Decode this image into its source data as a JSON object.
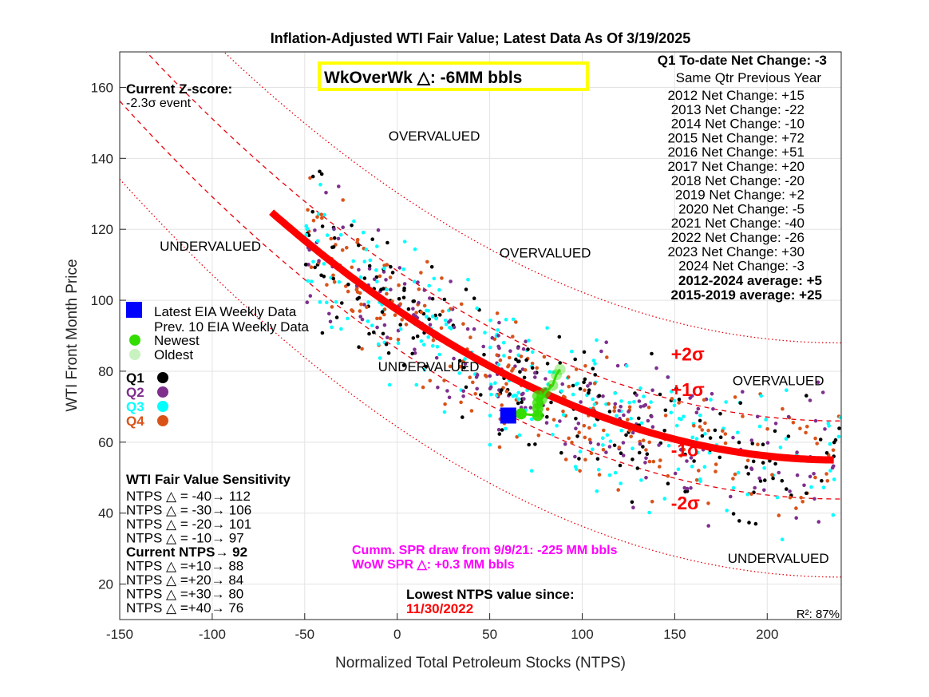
{
  "chart_data": {
    "type": "scatter",
    "title": "Inflation-Adjusted WTI Fair Value; Latest Data As Of 3/19/2025",
    "xlabel": "Normalized Total Petroleum Stocks (NTPS)",
    "ylabel": "WTI Front Month Price",
    "xlim": [
      -150,
      240
    ],
    "ylim": [
      10,
      170
    ],
    "xticks": [
      -150,
      -100,
      -50,
      0,
      50,
      100,
      150,
      200
    ],
    "yticks": [
      20,
      40,
      60,
      80,
      100,
      120,
      140,
      160
    ],
    "grid": true,
    "colors": {
      "fit": "#ff0000",
      "band": "#e8000b",
      "latest": "#0000ff",
      "prev10": "#33dd00",
      "q1": "#000000",
      "q2": "#7e2f8e",
      "q3": "#00ffff",
      "q4": "#d95319",
      "highlight_box": "#ffff00",
      "magenta": "#ff00ff",
      "red_text": "#ff0000"
    },
    "fit_curve": {
      "coefficients": {
        "a": 0.000742,
        "b": -0.3544,
        "c": 97.3,
        "xmin": -68,
        "xmax": 237
      }
    },
    "bands": [
      {
        "label": "+2σ",
        "offset": 33
      },
      {
        "label": "+1σ",
        "offset": 11
      },
      {
        "label": "-1σ",
        "offset": -11
      },
      {
        "label": "-2σ",
        "offset": -33
      }
    ],
    "latest_point": {
      "x": 60,
      "y": 67.5
    },
    "prev10_points": [
      {
        "x": 67,
        "y": 68
      },
      {
        "x": 76,
        "y": 67.5
      },
      {
        "x": 76,
        "y": 69.5
      },
      {
        "x": 76,
        "y": 71
      },
      {
        "x": 76,
        "y": 73
      },
      {
        "x": 78,
        "y": 72
      },
      {
        "x": 80,
        "y": 74
      },
      {
        "x": 84,
        "y": 76
      },
      {
        "x": 86,
        "y": 79
      },
      {
        "x": 88,
        "y": 80.5
      }
    ],
    "region_labels": [
      {
        "text": "OVERVALUED",
        "x": 20,
        "y": 145
      },
      {
        "text": "UNDERVALUED",
        "x": -101,
        "y": 114
      },
      {
        "text": "OVERVALUED",
        "x": 80,
        "y": 112
      },
      {
        "text": "UNDERVALUED",
        "x": 17,
        "y": 80
      },
      {
        "text": "OVERVALUED",
        "x": 206,
        "y": 76
      },
      {
        "text": "UNDERVALUED",
        "x": 206,
        "y": 26
      }
    ],
    "band_labels": [
      {
        "text": "+2σ",
        "x": 148,
        "y": 83
      },
      {
        "text": "+1σ",
        "x": 148,
        "y": 73
      },
      {
        "text": "-1σ",
        "x": 148,
        "y": 56
      },
      {
        "text": "-2σ",
        "x": 148,
        "y": 41
      }
    ],
    "wow_box": "WkOverWk △: -6MM bbls",
    "zscore": {
      "title": "Current Z-score:",
      "value": "-2.3σ event"
    },
    "legend": {
      "latest": "Latest EIA Weekly Data",
      "prev10": "Prev. 10 EIA Weekly Data",
      "newest": "Newest",
      "oldest": "Oldest",
      "quarters": [
        "Q1",
        "Q2",
        "Q3",
        "Q4"
      ]
    },
    "sensitivity": {
      "title": "WTI Fair Value Sensitivity",
      "rows": [
        "NTPS △ = -40→ 112",
        "NTPS △ = -30→ 106",
        "NTPS △ = -20→ 101",
        "NTPS △ = -10→ 97",
        "Current NTPS→ 92",
        "NTPS △ =+10→ 88",
        "NTPS △ =+20→ 84",
        "NTPS △ =+30→ 80",
        "NTPS △ =+40→ 76"
      ]
    },
    "net_change": {
      "title": "Q1 To-date Net Change: -3",
      "subtitle": "Same Qtr Previous Year",
      "rows": [
        "2012 Net Change: +15",
        "2013 Net Change: -22",
        "2014 Net Change: -10",
        "2015 Net Change: +72",
        "2016 Net Change: +51",
        "2017 Net Change: +20",
        "2018 Net Change: -20",
        "2019 Net Change: +2",
        "2020 Net Change: -5",
        "2021 Net Change: -40",
        "2022 Net Change: -26",
        "2023 Net Change: +30",
        "2024 Net Change: -3"
      ],
      "averages": [
        "2012-2024 average: +5",
        "2015-2019 average: +25"
      ]
    },
    "spr": [
      "Cumm. SPR draw from 9/9/21: -225 MM bbls",
      "WoW SPR △: +0.3 MM bbls"
    ],
    "lowest": {
      "label": "Lowest NTPS value since:",
      "date": "11/30/2022"
    },
    "r2": "R²: 87%"
  }
}
